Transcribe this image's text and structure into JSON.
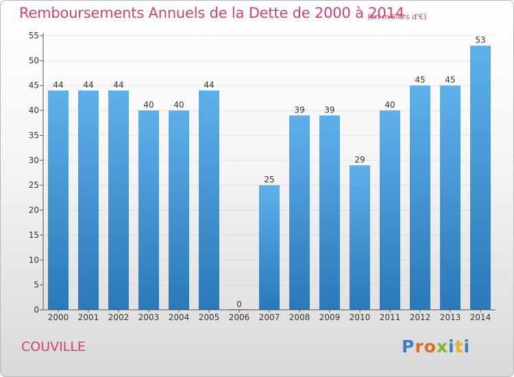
{
  "title": "Remboursements Annuels de la Dette de 2000 à 2014",
  "unit_label": "(en milliers d'€)",
  "town": "COUVILLE",
  "logo": {
    "text": "Proxiti",
    "letters": [
      {
        "ch": "P",
        "color": "#3a7fc4"
      },
      {
        "ch": "r",
        "color": "#e06a1f"
      },
      {
        "ch": "o",
        "color": "#e06a1f"
      },
      {
        "ch": "x",
        "color": "#7ab829"
      },
      {
        "ch": "i",
        "color": "#3a7fc4"
      },
      {
        "ch": "t",
        "color": "#e8b520"
      },
      {
        "ch": "i",
        "color": "#3a7fc4"
      }
    ]
  },
  "colors": {
    "title": "#d43f6e",
    "bar_top": "#5eb0ea",
    "bar_bottom": "#2a78b8"
  },
  "chart_data": {
    "type": "bar",
    "title": "Remboursements Annuels de la Dette de 2000 à 2014",
    "xlabel": "",
    "ylabel": "",
    "categories": [
      "2000",
      "2001",
      "2002",
      "2003",
      "2004",
      "2005",
      "2006",
      "2007",
      "2008",
      "2009",
      "2010",
      "2011",
      "2012",
      "2013",
      "2014"
    ],
    "values": [
      44,
      44,
      44,
      40,
      40,
      44,
      0,
      25,
      39,
      39,
      29,
      40,
      45,
      45,
      53
    ],
    "ylim": [
      0,
      55
    ],
    "yticks": [
      0,
      5,
      10,
      15,
      20,
      25,
      30,
      35,
      40,
      45,
      50,
      55
    ],
    "grid": true,
    "legend": "none"
  }
}
